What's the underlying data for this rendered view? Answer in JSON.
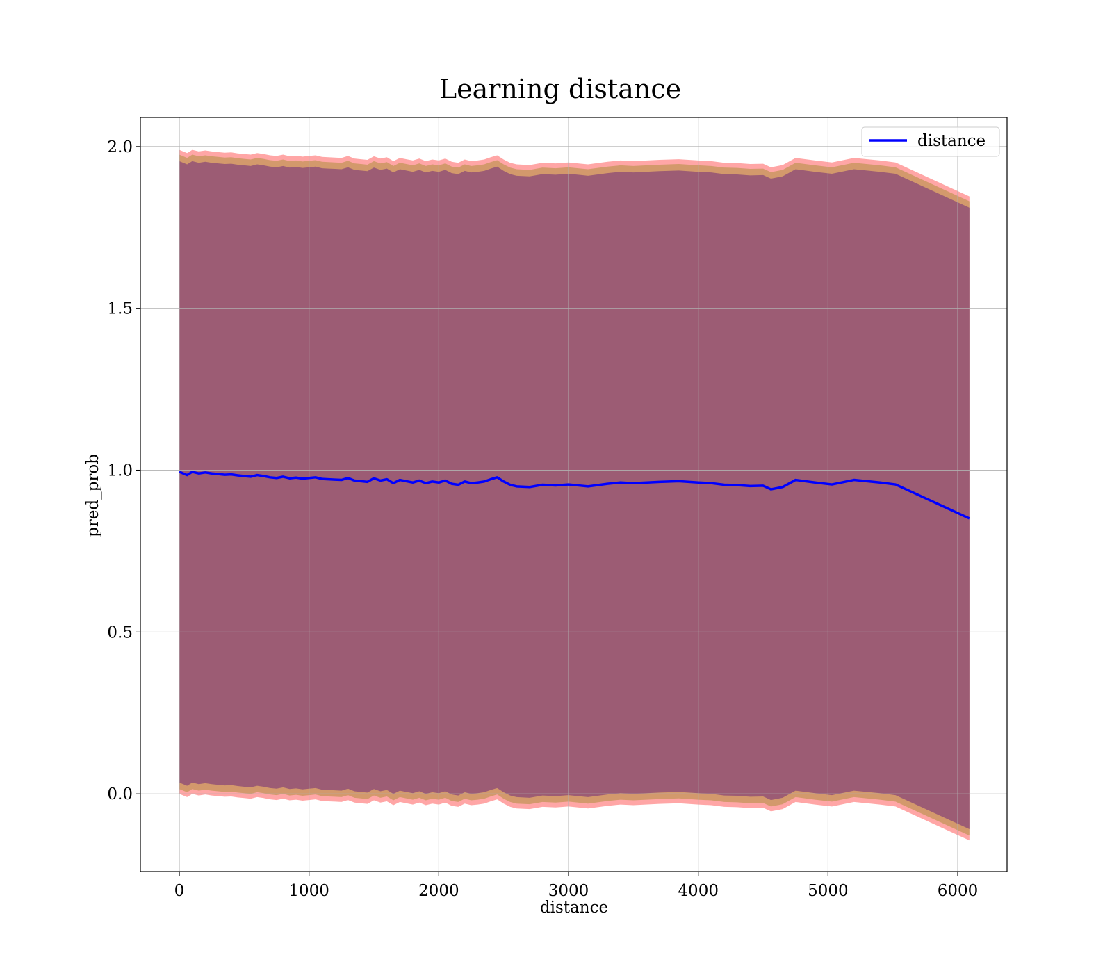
{
  "chart_data": {
    "type": "line",
    "title": "Learning distance",
    "xlabel": "distance",
    "ylabel": "pred_prob",
    "xlim": [
      -300,
      6380
    ],
    "ylim": [
      -0.24,
      2.09
    ],
    "xticks": [
      0,
      1000,
      2000,
      3000,
      4000,
      5000,
      6000
    ],
    "xtick_labels": [
      "0",
      "1000",
      "2000",
      "3000",
      "4000",
      "5000",
      "6000"
    ],
    "yticks": [
      0.0,
      0.5,
      1.0,
      1.5,
      2.0
    ],
    "ytick_labels": [
      "0.0",
      "0.5",
      "1.0",
      "1.5",
      "2.0"
    ],
    "grid": true,
    "legend": {
      "location": "upper right",
      "entries": [
        {
          "label": "distance",
          "color": "#0000ff"
        }
      ]
    },
    "series": [
      {
        "name": "distance",
        "color": "#0000ff",
        "x": [
          0,
          60,
          100,
          150,
          200,
          250,
          300,
          350,
          400,
          450,
          500,
          550,
          600,
          650,
          700,
          750,
          800,
          850,
          900,
          950,
          1000,
          1050,
          1100,
          1150,
          1200,
          1250,
          1300,
          1350,
          1400,
          1450,
          1500,
          1550,
          1600,
          1650,
          1700,
          1750,
          1800,
          1850,
          1900,
          1950,
          2000,
          2050,
          2100,
          2150,
          2200,
          2250,
          2300,
          2350,
          2400,
          2450,
          2500,
          2550,
          2600,
          2700,
          2800,
          2900,
          3000,
          3100,
          3150,
          3300,
          3400,
          3500,
          3700,
          3850,
          4000,
          4100,
          4200,
          4300,
          4400,
          4500,
          4560,
          4650,
          4750,
          4900,
          5030,
          5200,
          5400,
          5520,
          6090
        ],
        "y": [
          0.995,
          0.985,
          0.995,
          0.99,
          0.993,
          0.99,
          0.988,
          0.986,
          0.987,
          0.984,
          0.982,
          0.98,
          0.985,
          0.982,
          0.978,
          0.976,
          0.98,
          0.975,
          0.977,
          0.974,
          0.976,
          0.978,
          0.973,
          0.972,
          0.971,
          0.97,
          0.976,
          0.968,
          0.966,
          0.964,
          0.975,
          0.968,
          0.972,
          0.96,
          0.97,
          0.966,
          0.962,
          0.968,
          0.96,
          0.965,
          0.962,
          0.968,
          0.958,
          0.955,
          0.965,
          0.96,
          0.962,
          0.965,
          0.972,
          0.978,
          0.965,
          0.955,
          0.95,
          0.948,
          0.955,
          0.953,
          0.956,
          0.952,
          0.95,
          0.958,
          0.962,
          0.96,
          0.964,
          0.966,
          0.962,
          0.96,
          0.955,
          0.954,
          0.951,
          0.952,
          0.941,
          0.948,
          0.97,
          0.962,
          0.956,
          0.97,
          0.962,
          0.956,
          0.851
        ]
      }
    ],
    "bands": [
      {
        "name": "outer",
        "color": "#ff0000",
        "opacity": 0.35,
        "spread": 0.995
      },
      {
        "name": "middle",
        "color": "#808000",
        "opacity": 0.35,
        "spread": 0.98
      },
      {
        "name": "inner",
        "color": "#4b0082",
        "opacity": 0.4,
        "spread": 0.96
      }
    ]
  }
}
